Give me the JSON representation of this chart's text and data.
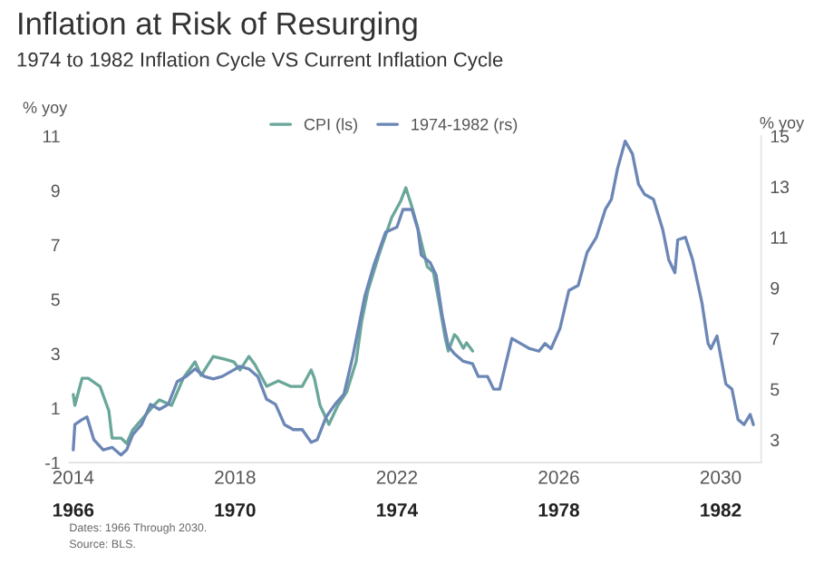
{
  "chart_data": {
    "type": "line",
    "title": "Inflation at Risk of Resurging",
    "subtitle": "1974 to 1982 Inflation Cycle VS Current Inflation Cycle",
    "ylabel": "% yoy",
    "y2label": "% yoy",
    "annotations": [
      "Dates: 1966 Through 2030.",
      "Source: BLS."
    ],
    "xlim": [
      2013.9,
      2031.0
    ],
    "xticks": [
      2014,
      2018,
      2022,
      2026,
      2030
    ],
    "x2lim": [
      1965.9,
      1983.0
    ],
    "x2ticks": [
      1966,
      1970,
      1974,
      1978,
      1982
    ],
    "ylim": [
      -1,
      11
    ],
    "yticks": [
      -1,
      1,
      3,
      5,
      7,
      9,
      11
    ],
    "y2lim": [
      2.1,
      15
    ],
    "y2ticks": [
      3,
      5,
      7,
      9,
      11,
      13,
      15
    ],
    "grid": false,
    "legend": "top",
    "marker": "none",
    "line_style": "solid",
    "series": [
      {
        "name": "CPI (ls)",
        "color": "#6aa79a",
        "axis": "y",
        "x": [
          2014.0,
          2014.04,
          2014.22,
          2014.37,
          2014.66,
          2014.88,
          2014.96,
          2015.18,
          2015.32,
          2015.47,
          2015.76,
          2015.99,
          2016.13,
          2016.43,
          2016.72,
          2017.01,
          2017.16,
          2017.46,
          2017.75,
          2017.97,
          2018.12,
          2018.34,
          2018.49,
          2018.78,
          2019.07,
          2019.37,
          2019.66,
          2019.88,
          2019.96,
          2020.1,
          2020.32,
          2020.54,
          2020.76,
          2020.99,
          2021.13,
          2021.28,
          2021.57,
          2021.87,
          2022.09,
          2022.22,
          2022.37,
          2022.52,
          2022.75,
          2022.9,
          2023.04,
          2023.19,
          2023.27,
          2023.42,
          2023.49,
          2023.64,
          2023.72,
          2023.87
        ],
        "values": [
          1.5,
          1.1,
          2.1,
          2.1,
          1.8,
          0.9,
          -0.1,
          -0.1,
          -0.3,
          0.2,
          0.7,
          1.1,
          1.3,
          1.1,
          2.1,
          2.7,
          2.2,
          2.9,
          2.8,
          2.7,
          2.4,
          2.9,
          2.6,
          1.8,
          2.0,
          1.8,
          1.8,
          2.4,
          2.1,
          1.1,
          0.4,
          1.1,
          1.6,
          2.7,
          4.2,
          5.3,
          6.7,
          8.0,
          8.6,
          9.1,
          8.4,
          7.6,
          6.2,
          6.0,
          4.9,
          3.6,
          3.1,
          3.7,
          3.6,
          3.2,
          3.4,
          3.1
        ]
      },
      {
        "name": "1974-1982 (rs)",
        "color": "#6c87b6",
        "axis": "y2",
        "x": [
          2014.0,
          2014.04,
          2014.22,
          2014.34,
          2014.51,
          2014.74,
          2014.96,
          2015.18,
          2015.32,
          2015.47,
          2015.69,
          2015.91,
          2016.13,
          2016.35,
          2016.57,
          2016.79,
          2017.01,
          2017.24,
          2017.46,
          2017.68,
          2017.9,
          2018.12,
          2018.34,
          2018.56,
          2018.78,
          2019.0,
          2019.22,
          2019.44,
          2019.66,
          2019.88,
          2020.03,
          2020.25,
          2020.47,
          2020.69,
          2020.91,
          2021.06,
          2021.21,
          2021.43,
          2021.72,
          2022.0,
          2022.15,
          2022.37,
          2022.52,
          2022.6,
          2022.82,
          2022.97,
          2023.12,
          2023.27,
          2023.42,
          2023.64,
          2023.87,
          2024.01,
          2024.24,
          2024.39,
          2024.54,
          2024.69,
          2024.84,
          2025.06,
          2025.28,
          2025.51,
          2025.66,
          2025.81,
          2026.03,
          2026.25,
          2026.48,
          2026.7,
          2026.93,
          2027.15,
          2027.3,
          2027.45,
          2027.64,
          2027.82,
          2027.97,
          2028.12,
          2028.34,
          2028.57,
          2028.72,
          2028.87,
          2028.94,
          2029.13,
          2029.31,
          2029.54,
          2029.69,
          2029.76,
          2029.91,
          2030.13,
          2030.28,
          2030.43,
          2030.58,
          2030.73,
          2030.81
        ],
        "values": [
          2.6,
          3.6,
          3.8,
          3.9,
          3.0,
          2.6,
          2.7,
          2.4,
          2.6,
          3.2,
          3.6,
          4.4,
          4.2,
          4.4,
          5.3,
          5.5,
          5.8,
          5.5,
          5.4,
          5.5,
          5.7,
          5.9,
          5.8,
          5.5,
          4.6,
          4.4,
          3.6,
          3.4,
          3.4,
          2.9,
          3.0,
          3.9,
          4.4,
          4.8,
          6.3,
          7.5,
          8.7,
          9.9,
          11.2,
          11.4,
          12.1,
          12.1,
          11.3,
          10.3,
          10.0,
          9.5,
          7.9,
          6.7,
          6.4,
          6.1,
          6.0,
          5.5,
          5.5,
          5.0,
          5.0,
          6.0,
          7.0,
          6.8,
          6.6,
          6.5,
          6.8,
          6.6,
          7.4,
          8.9,
          9.1,
          10.4,
          11.0,
          12.1,
          12.5,
          13.7,
          14.8,
          14.3,
          13.1,
          12.7,
          12.5,
          11.3,
          10.1,
          9.6,
          10.9,
          11.0,
          10.1,
          8.4,
          6.8,
          6.6,
          7.1,
          5.2,
          5.0,
          3.8,
          3.6,
          4.0,
          3.6
        ]
      }
    ]
  }
}
